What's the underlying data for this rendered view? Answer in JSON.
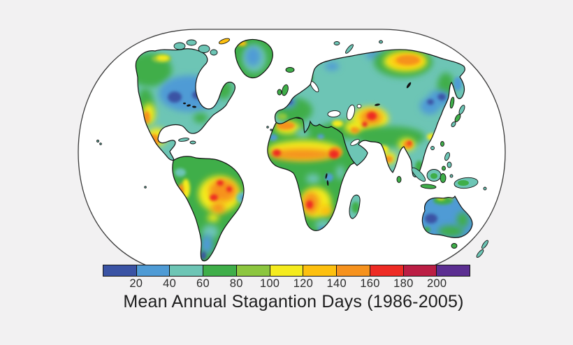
{
  "title": "Mean Annual Stagantion Days (1986-2005)",
  "colorbar": {
    "tick_labels": [
      "20",
      "40",
      "60",
      "80",
      "100",
      "120",
      "140",
      "160",
      "180",
      "200"
    ],
    "colors": [
      "#3a53a4",
      "#4f9bd5",
      "#6dc5b5",
      "#3fae49",
      "#8cc63f",
      "#f5eb1e",
      "#fdc00f",
      "#f6921e",
      "#ee2b24",
      "#bb1e44",
      "#5b2e91"
    ]
  },
  "chart_data": {
    "type": "heatmap",
    "subtype": "filled-contour world map (Robinson-style projection)",
    "title": "Mean Annual Stagantion Days (1986-2005)",
    "unit": "days per year",
    "period": "1986-2005",
    "bin_edges": [
      0,
      20,
      40,
      60,
      80,
      100,
      120,
      140,
      160,
      180,
      200
    ],
    "open_ended_top_bin": "200+",
    "bin_colors": [
      "#3a53a4",
      "#4f9bd5",
      "#6dc5b5",
      "#3fae49",
      "#8cc63f",
      "#f5eb1e",
      "#fdc00f",
      "#f6921e",
      "#ee2b24",
      "#bb1e44",
      "#5b2e91"
    ],
    "legend_position": "bottom horizontal colorbar",
    "regions": [
      {
        "region": "Alaska / Yukon",
        "approx_days": "80-120"
      },
      {
        "region": "Central and eastern Canada",
        "approx_days": "20-40"
      },
      {
        "region": "Canadian prairie core spots",
        "approx_days": "0-20"
      },
      {
        "region": "Western US / Rockies",
        "approx_days": "60-100"
      },
      {
        "region": "US Southwest",
        "approx_days": "100-140"
      },
      {
        "region": "Mexico",
        "approx_days": "120-160"
      },
      {
        "region": "Southeastern US",
        "approx_days": "40-60"
      },
      {
        "region": "Greenland interior",
        "approx_days": "20-40"
      },
      {
        "region": "Western / central Europe",
        "approx_days": "40-80"
      },
      {
        "region": "Eastern Europe / Baltic",
        "approx_days": "20-40"
      },
      {
        "region": "Central Siberia",
        "approx_days": "40-60"
      },
      {
        "region": "Northeast Siberia",
        "approx_days": "120-160"
      },
      {
        "region": "Northeast China / Okhotsk area",
        "approx_days": "20-40"
      },
      {
        "region": "Central Asia / Iran-Afghanistan",
        "approx_days": "160-200"
      },
      {
        "region": "Arabian Peninsula",
        "approx_days": "60-120"
      },
      {
        "region": "India",
        "approx_days": "60-140"
      },
      {
        "region": "Myanmar / Bangladesh",
        "approx_days": "120-160"
      },
      {
        "region": "Indochina / Indonesia",
        "approx_days": "40-60"
      },
      {
        "region": "Sahara / Sahel belt",
        "approx_days": "120-180"
      },
      {
        "region": "Ethiopia / Horn of Africa",
        "approx_days": "160-180"
      },
      {
        "region": "Central Africa (Congo basin)",
        "approx_days": "60-80"
      },
      {
        "region": "Southwestern Africa (Angola/Namibia)",
        "approx_days": "120-180"
      },
      {
        "region": "Southern tip of Africa",
        "approx_days": "20-40"
      },
      {
        "region": "Eastern Amazon / interior Brazil",
        "approx_days": "120-180"
      },
      {
        "region": "Andes coastal strip (Peru/Chile)",
        "approx_days": "140-180"
      },
      {
        "region": "Patagonia",
        "approx_days": "20-40"
      },
      {
        "region": "Interior western Australia",
        "approx_days": "20-40"
      },
      {
        "region": "Northern Australia",
        "approx_days": "100-120"
      },
      {
        "region": "Southern / eastern Australia",
        "approx_days": "60-80"
      },
      {
        "region": "New Zealand",
        "approx_days": "40-60"
      }
    ]
  }
}
